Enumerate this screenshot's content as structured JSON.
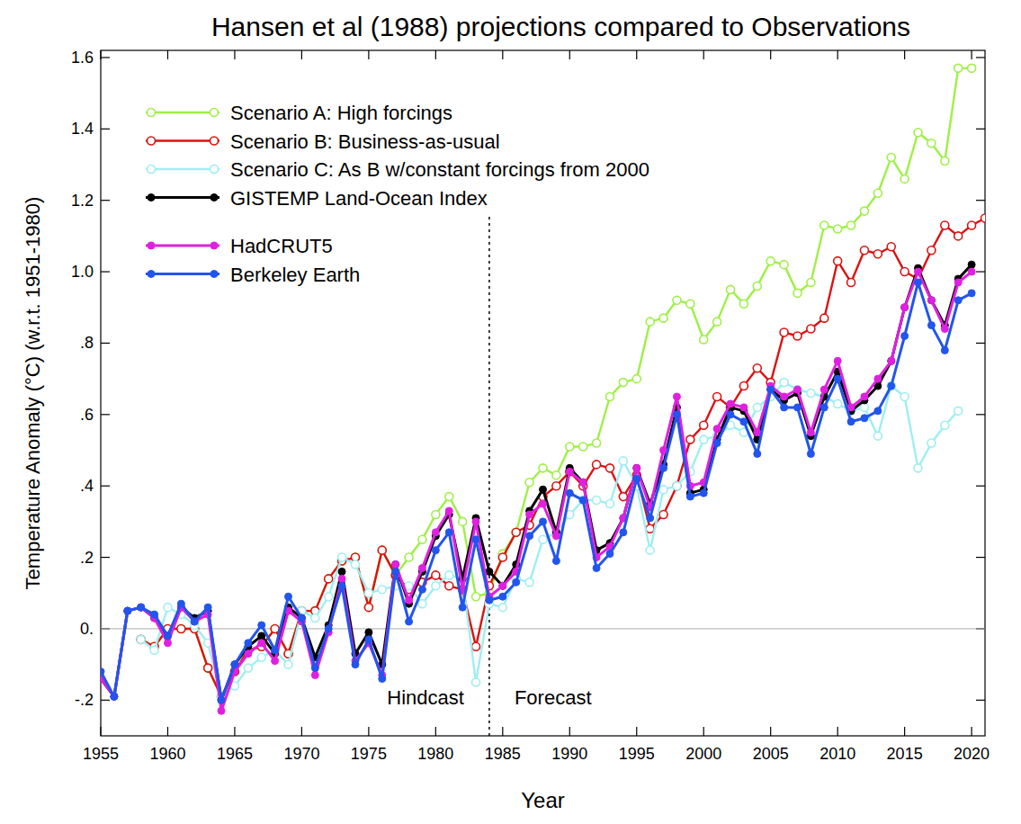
{
  "chart_data": {
    "type": "line",
    "title": "Hansen et al (1988) projections compared to Observations",
    "x_label": "Year",
    "y_label": "Temperature Anomaly (°C) (w.r.t. 1951-1980)",
    "annotations": [
      "Hindcast",
      "Forecast"
    ],
    "vline_x": 1984,
    "legend": "upper-left",
    "grid": false,
    "xlim": [
      1955,
      2021
    ],
    "ylim": [
      -0.3,
      1.62
    ],
    "xticks": [
      1955,
      1960,
      1965,
      1970,
      1975,
      1980,
      1985,
      1990,
      1995,
      2000,
      2005,
      2010,
      2015,
      2020
    ],
    "yticks": [
      {
        "value": -0.2,
        "label": "-.2"
      },
      {
        "value": 0,
        "label": "0."
      },
      {
        "value": 0.2,
        "label": ".2"
      },
      {
        "value": 0.4,
        "label": ".4"
      },
      {
        "value": 0.6,
        "label": ".6"
      },
      {
        "value": 0.8,
        "label": ".8"
      },
      {
        "value": 1.0,
        "label": "1.0"
      },
      1.2,
      1.4,
      1.6
    ],
    "x": [
      1955,
      1956,
      1957,
      1958,
      1959,
      1960,
      1961,
      1962,
      1963,
      1964,
      1965,
      1966,
      1967,
      1968,
      1969,
      1970,
      1971,
      1972,
      1973,
      1974,
      1975,
      1976,
      1977,
      1978,
      1979,
      1980,
      1981,
      1982,
      1983,
      1984,
      1985,
      1986,
      1987,
      1988,
      1989,
      1990,
      1991,
      1992,
      1993,
      1994,
      1995,
      1996,
      1997,
      1998,
      1999,
      2000,
      2001,
      2002,
      2003,
      2004,
      2005,
      2006,
      2007,
      2008,
      2009,
      2010,
      2011,
      2012,
      2013,
      2014,
      2015,
      2016,
      2017,
      2018,
      2019,
      2020,
      2021
    ],
    "series": [
      {
        "name": "Scenario A: High forcings",
        "color": "#9ef046",
        "marker": "open_circle",
        "line_style": "solid",
        "values": [
          null,
          null,
          null,
          -0.03,
          -0.05,
          0.0,
          0.0,
          0.0,
          -0.11,
          -0.19,
          -0.12,
          -0.06,
          -0.05,
          0.0,
          -0.07,
          0.05,
          0.05,
          0.14,
          0.19,
          0.2,
          0.06,
          0.22,
          0.15,
          0.2,
          0.25,
          0.32,
          0.37,
          0.3,
          0.09,
          0.1,
          0.21,
          0.27,
          0.41,
          0.45,
          0.43,
          0.51,
          0.51,
          0.52,
          0.65,
          0.69,
          0.7,
          0.86,
          0.87,
          0.92,
          0.91,
          0.81,
          0.86,
          0.95,
          0.91,
          0.96,
          1.03,
          1.02,
          0.94,
          0.97,
          1.13,
          1.12,
          1.13,
          1.17,
          1.22,
          1.32,
          1.26,
          1.39,
          1.36,
          1.31,
          1.57,
          1.57,
          null
        ]
      },
      {
        "name": "Scenario B: Business-as-usual",
        "color": "#dd1111",
        "marker": "open_circle",
        "line_style": "solid",
        "values": [
          null,
          null,
          null,
          -0.03,
          -0.05,
          0.0,
          0.0,
          0.0,
          -0.11,
          -0.19,
          -0.12,
          -0.06,
          -0.05,
          0.0,
          -0.07,
          0.05,
          0.05,
          0.14,
          0.19,
          0.2,
          0.06,
          0.22,
          0.15,
          0.11,
          0.13,
          0.15,
          0.12,
          0.11,
          -0.05,
          0.12,
          0.2,
          0.27,
          0.29,
          0.37,
          0.4,
          0.44,
          0.4,
          0.46,
          0.45,
          0.37,
          0.43,
          0.28,
          0.32,
          0.4,
          0.53,
          0.57,
          0.65,
          0.62,
          0.68,
          0.73,
          0.69,
          0.83,
          0.82,
          0.84,
          0.87,
          1.03,
          0.97,
          1.06,
          1.05,
          1.07,
          1.0,
          0.98,
          1.06,
          1.13,
          1.1,
          1.13,
          1.15
        ]
      },
      {
        "name": "Scenario C: As B w/constant forcings from 2000",
        "color": "#9eeef2",
        "marker": "open_circle",
        "line_style": "solid",
        "values": [
          null,
          null,
          null,
          -0.03,
          -0.06,
          0.06,
          0.04,
          0.01,
          -0.04,
          -0.19,
          -0.16,
          -0.11,
          -0.08,
          -0.06,
          -0.1,
          0.05,
          0.03,
          0.09,
          0.2,
          0.18,
          0.1,
          0.11,
          0.12,
          0.12,
          0.07,
          0.12,
          0.15,
          0.14,
          -0.15,
          0.07,
          0.06,
          0.14,
          0.13,
          0.25,
          0.27,
          0.32,
          0.36,
          0.36,
          0.35,
          0.47,
          0.4,
          0.22,
          0.39,
          0.4,
          0.44,
          0.53,
          0.54,
          0.57,
          0.55,
          0.62,
          0.65,
          0.69,
          0.67,
          0.66,
          0.65,
          0.63,
          0.61,
          0.62,
          0.54,
          0.68,
          0.65,
          0.45,
          0.52,
          0.57,
          0.61,
          null,
          null
        ]
      },
      {
        "name": "GISTEMP Land-Ocean Index",
        "color": "#000000",
        "marker": "filled_circle",
        "line_style": "solid",
        "values": [
          -0.14,
          -0.19,
          0.05,
          0.06,
          0.03,
          -0.02,
          0.06,
          0.03,
          0.05,
          -0.2,
          -0.1,
          -0.05,
          -0.02,
          -0.07,
          0.06,
          0.03,
          -0.08,
          0.01,
          0.16,
          -0.07,
          -0.01,
          -0.1,
          0.18,
          0.07,
          0.16,
          0.26,
          0.32,
          0.14,
          0.31,
          0.16,
          0.12,
          0.18,
          0.33,
          0.39,
          0.27,
          0.45,
          0.41,
          0.22,
          0.24,
          0.31,
          0.45,
          0.35,
          0.46,
          0.62,
          0.38,
          0.39,
          0.53,
          0.62,
          0.61,
          0.53,
          0.67,
          0.64,
          0.66,
          0.54,
          0.65,
          0.72,
          0.61,
          0.64,
          0.68,
          0.75,
          0.9,
          1.01,
          0.92,
          0.85,
          0.98,
          1.02,
          null
        ]
      },
      {
        "name": "HadCRUT5",
        "color": "#e020e0",
        "marker": "filled_circle",
        "line_style": "solid",
        "values": [
          -0.14,
          -0.19,
          0.05,
          0.06,
          0.03,
          -0.04,
          0.06,
          0.02,
          0.04,
          -0.23,
          -0.12,
          -0.07,
          -0.04,
          -0.09,
          0.05,
          0.02,
          -0.13,
          -0.01,
          0.14,
          -0.09,
          -0.04,
          -0.13,
          0.18,
          0.08,
          0.17,
          0.27,
          0.33,
          0.11,
          0.3,
          0.09,
          0.12,
          0.16,
          0.32,
          0.35,
          0.26,
          0.44,
          0.41,
          0.2,
          0.23,
          0.31,
          0.45,
          0.34,
          0.5,
          0.65,
          0.4,
          0.41,
          0.56,
          0.63,
          0.62,
          0.55,
          0.68,
          0.65,
          0.67,
          0.55,
          0.67,
          0.75,
          0.62,
          0.65,
          0.7,
          0.75,
          0.9,
          1.0,
          0.92,
          0.84,
          0.97,
          1.0,
          null
        ]
      },
      {
        "name": "Berkeley Earth",
        "color": "#2255ee",
        "marker": "filled_circle",
        "line_style": "solid",
        "values": [
          -0.12,
          -0.19,
          0.05,
          0.06,
          0.04,
          -0.02,
          0.07,
          0.02,
          0.06,
          -0.2,
          -0.1,
          -0.04,
          0.01,
          -0.06,
          0.09,
          0.03,
          -0.11,
          0.0,
          0.12,
          -0.1,
          -0.03,
          -0.14,
          0.16,
          0.02,
          0.11,
          0.22,
          0.27,
          0.06,
          0.25,
          0.08,
          0.09,
          0.13,
          0.26,
          0.3,
          0.19,
          0.38,
          0.36,
          0.17,
          0.21,
          0.27,
          0.42,
          0.31,
          0.45,
          0.6,
          0.37,
          0.38,
          0.52,
          0.6,
          0.58,
          0.49,
          0.67,
          0.62,
          0.62,
          0.49,
          0.62,
          0.7,
          0.58,
          0.59,
          0.61,
          0.68,
          0.82,
          0.97,
          0.85,
          0.78,
          0.92,
          0.94,
          null
        ]
      }
    ]
  }
}
